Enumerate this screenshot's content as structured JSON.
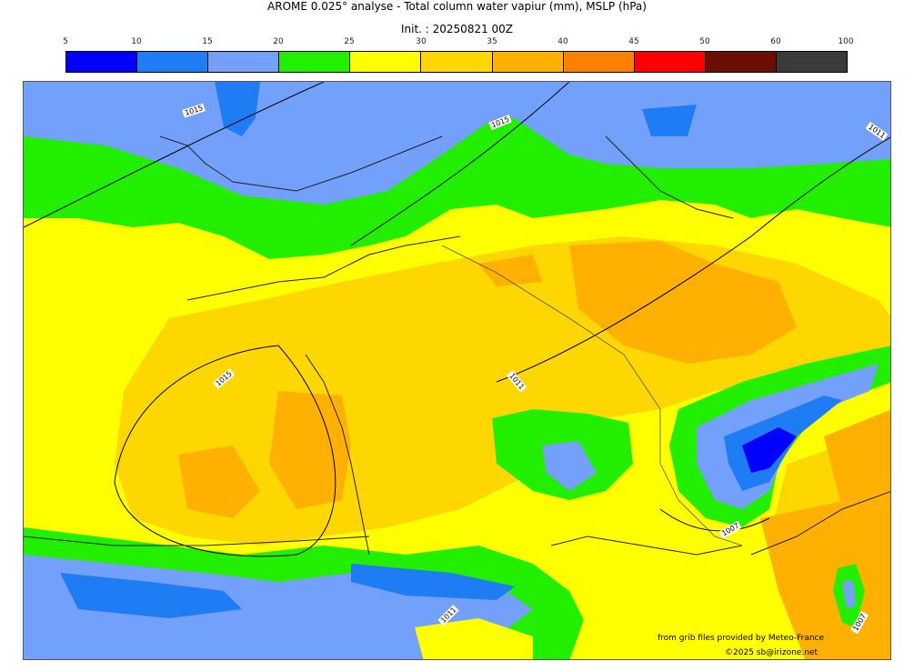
{
  "header": {
    "title": "AROME 0.025° analyse - Total column water vapiur (mm), MSLP (hPa)",
    "init": "Init. : 20250821 00Z"
  },
  "colorbar": {
    "ticks": [
      "5",
      "10",
      "15",
      "20",
      "25",
      "30",
      "35",
      "40",
      "45",
      "50",
      "60",
      "100"
    ],
    "colors": [
      "#0000ff",
      "#1e7cf5",
      "#73a0fb",
      "#22ee00",
      "#ffff00",
      "#ffd700",
      "#ffb000",
      "#ff8000",
      "#ff0000",
      "#6b0f05",
      "#3a3a3a"
    ]
  },
  "isobars": {
    "labels": [
      "1015",
      "1015",
      "1011",
      "1015",
      "1011",
      "1007",
      "1011",
      "1007"
    ]
  },
  "credits": {
    "source": "from grib files provided by Meteo-France",
    "copyright": "©2025 sb@irizone.net"
  }
}
